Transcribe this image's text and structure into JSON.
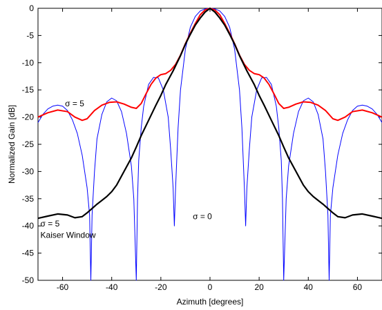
{
  "chart_data": {
    "type": "line",
    "title": "",
    "xlabel": "Azimuth [degrees]",
    "ylabel": "Normalized Gain [dB]",
    "xlim": [
      -70,
      70
    ],
    "ylim": [
      -50,
      0
    ],
    "xticks": [
      -60,
      -40,
      -20,
      0,
      20,
      40,
      60
    ],
    "yticks": [
      0,
      -5,
      -10,
      -15,
      -20,
      -25,
      -30,
      -35,
      -40,
      -45,
      -50
    ],
    "grid": false,
    "legend": "none",
    "series": [
      {
        "color": "#0000ff",
        "x": [
          -70,
          -68,
          -66,
          -64,
          -62,
          -60,
          -58,
          -56,
          -54,
          -52,
          -50,
          -49,
          -48.5,
          -48,
          -47,
          -46,
          -44,
          -42,
          -40,
          -38,
          -36,
          -34,
          -32,
          -31,
          -30,
          -29.5,
          -29,
          -28,
          -27,
          -25,
          -23,
          -21,
          -19,
          -17,
          -16,
          -15,
          -14.5,
          -14,
          -13,
          -12,
          -10,
          -8,
          -6,
          -4,
          -2,
          0,
          2,
          4,
          6,
          8,
          10,
          12,
          13,
          14,
          14.5,
          15,
          16,
          17,
          19,
          21,
          23,
          25,
          27,
          28,
          29,
          29.5,
          30,
          31,
          32,
          34,
          36,
          38,
          40,
          42,
          44,
          46,
          47,
          48,
          48.5,
          49,
          50,
          52,
          54,
          56,
          58,
          60,
          62,
          64,
          66,
          68,
          70
        ],
        "y": [
          -21,
          -19.5,
          -18.5,
          -18,
          -17.8,
          -18,
          -18.8,
          -20.5,
          -23,
          -27,
          -33,
          -38,
          -50,
          -38,
          -30,
          -24,
          -19.5,
          -17.2,
          -16.5,
          -17,
          -19,
          -23,
          -29,
          -35,
          -50,
          -35,
          -28,
          -22,
          -18,
          -14,
          -12.7,
          -12.8,
          -15,
          -20,
          -26,
          -33,
          -40,
          -33,
          -22,
          -15,
          -7.5,
          -3.5,
          -1.5,
          -0.5,
          -0.1,
          0,
          -0.1,
          -0.5,
          -1.5,
          -3.5,
          -7.5,
          -15,
          -22,
          -33,
          -40,
          -33,
          -26,
          -20,
          -15,
          -12.8,
          -12.7,
          -14,
          -18,
          -22,
          -28,
          -35,
          -50,
          -35,
          -29,
          -23,
          -19,
          -17,
          -16.5,
          -17.2,
          -19.5,
          -24,
          -30,
          -38,
          -50,
          -38,
          -33,
          -27,
          -23,
          -20.5,
          -18.8,
          -18,
          -17.8,
          -18,
          -18.5,
          -19.5,
          -21
        ]
      },
      {
        "color": "#ff0000",
        "x": [
          -70,
          -66,
          -62,
          -58,
          -55,
          -52,
          -50,
          -47,
          -44,
          -41,
          -38,
          -35,
          -32,
          -30,
          -28,
          -26,
          -24,
          -22,
          -20,
          -18,
          -16,
          -14,
          -12,
          -10,
          -8,
          -6,
          -4,
          -2,
          0,
          2,
          4,
          6,
          8,
          10,
          12,
          14,
          16,
          18,
          20,
          22,
          24,
          26,
          28,
          30,
          32,
          35,
          38,
          41,
          44,
          47,
          50,
          52,
          55,
          58,
          62,
          66,
          70
        ],
        "y": [
          -20,
          -19.2,
          -18.7,
          -19,
          -20,
          -20.6,
          -20.3,
          -18.8,
          -17.8,
          -17.3,
          -17.2,
          -17.6,
          -18.2,
          -18.4,
          -17.5,
          -15.7,
          -14.0,
          -12.8,
          -12.2,
          -12.0,
          -11.4,
          -10.3,
          -8.6,
          -6.5,
          -4.6,
          -2.8,
          -1.2,
          -0.3,
          0,
          -0.3,
          -1.2,
          -2.8,
          -4.6,
          -6.5,
          -8.6,
          -10.3,
          -11.4,
          -12.0,
          -12.2,
          -12.8,
          -14.0,
          -15.7,
          -17.5,
          -18.4,
          -18.2,
          -17.6,
          -17.2,
          -17.3,
          -17.8,
          -18.8,
          -20.3,
          -20.6,
          -20,
          -19,
          -18.7,
          -19.2,
          -20
        ]
      },
      {
        "color": "#000000",
        "x": [
          -70,
          -66,
          -62,
          -58,
          -55,
          -52,
          -50,
          -48,
          -46,
          -44,
          -42,
          -40,
          -38,
          -35,
          -32,
          -30,
          -28,
          -25,
          -22,
          -20,
          -18,
          -15,
          -12,
          -10,
          -8,
          -6,
          -4,
          -2,
          0,
          2,
          4,
          6,
          8,
          10,
          12,
          15,
          18,
          20,
          22,
          25,
          28,
          30,
          32,
          35,
          38,
          40,
          42,
          44,
          46,
          48,
          50,
          52,
          55,
          58,
          62,
          66,
          70
        ],
        "y": [
          -38.6,
          -38.2,
          -37.8,
          -38,
          -38.5,
          -38.3,
          -37.6,
          -36.8,
          -36,
          -35.3,
          -34.6,
          -33.7,
          -32.5,
          -30,
          -27.5,
          -25.5,
          -23.4,
          -20.6,
          -17.8,
          -16,
          -14,
          -11.5,
          -8.7,
          -6.6,
          -4.8,
          -3.1,
          -1.8,
          -0.7,
          0,
          -0.7,
          -1.8,
          -3.1,
          -4.8,
          -6.6,
          -8.7,
          -11.5,
          -14,
          -16,
          -17.8,
          -20.6,
          -23.4,
          -25.5,
          -27.5,
          -30,
          -32.5,
          -33.7,
          -34.6,
          -35.3,
          -36,
          -36.8,
          -37.6,
          -38.3,
          -38.5,
          -38,
          -37.8,
          -38.2,
          -38.6
        ]
      }
    ],
    "annotations": [
      {
        "text": "σ = 5",
        "x": -59,
        "y": -18
      },
      {
        "text": "σ = 0",
        "x": -7,
        "y": -38.8
      },
      {
        "text": "σ = 5",
        "x": -69,
        "y": -40.1
      },
      {
        "text": "Kaiser Window",
        "x": -69,
        "y": -42.2
      }
    ]
  }
}
